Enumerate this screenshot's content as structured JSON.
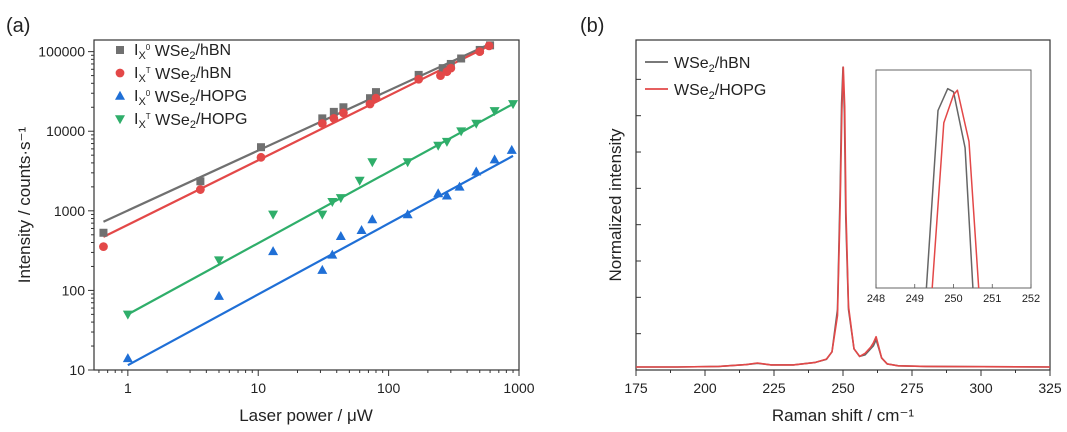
{
  "chart_data": [
    {
      "panel_label": "(a)",
      "type": "scatter",
      "xlabel": "Laser power / μW",
      "ylabel": "Intensity / counts·s⁻¹",
      "xscale": "log",
      "yscale": "log",
      "xlim": [
        0.55,
        1000
      ],
      "ylim": [
        10,
        140000
      ],
      "xticks": [
        1,
        10,
        100,
        1000
      ],
      "xtick_labels": [
        "1",
        "10",
        "100",
        "1000"
      ],
      "yticks": [
        10,
        100,
        1000,
        10000,
        100000
      ],
      "ytick_labels": [
        "10",
        "100",
        "1000",
        "10000",
        "100000"
      ],
      "grid": false,
      "legend_position": "top-left",
      "series": [
        {
          "name": "I X0 WSe2/hBN",
          "name_main": "I",
          "name_sub": "X",
          "name_sup": "0",
          "name_material": "WSe",
          "name_material_sub": "2",
          "name_substrate": "/hBN",
          "marker": "square",
          "color": "#707070",
          "x": [
            0.65,
            3.6,
            10.5,
            31,
            38,
            45,
            72,
            80,
            170,
            260,
            300,
            360,
            500,
            600
          ],
          "y": [
            530,
            2350,
            6300,
            14500,
            17500,
            20000,
            26000,
            31000,
            51000,
            62000,
            70000,
            82000,
            105000,
            120000
          ],
          "fit": {
            "x": [
              0.65,
              600
            ],
            "y": [
              730,
              125000
            ]
          }
        },
        {
          "name": "I XT WSe2/hBN",
          "name_main": "I",
          "name_sub": "X",
          "name_sup": "T",
          "name_material": "WSe",
          "name_material_sub": "2",
          "name_substrate": "/hBN",
          "marker": "circle",
          "color": "#e34848",
          "x": [
            0.65,
            3.6,
            10.5,
            31,
            38,
            45,
            72,
            80,
            170,
            250,
            280,
            300,
            500,
            590
          ],
          "y": [
            355,
            1850,
            4700,
            12500,
            14500,
            17000,
            22000,
            26000,
            45000,
            50000,
            56000,
            62000,
            100000,
            118000
          ],
          "fit": {
            "x": [
              0.65,
              590
            ],
            "y": [
              470,
              118000
            ]
          }
        },
        {
          "name": "I X0 WSe2/HOPG",
          "name_main": "I",
          "name_sub": "X",
          "name_sup": "0",
          "name_material": "WSe",
          "name_material_sub": "2",
          "name_substrate": "/HOPG",
          "marker": "triangle-up",
          "color": "#1f6fd6",
          "x": [
            1,
            5,
            13,
            31,
            37,
            43,
            62,
            75,
            140,
            240,
            280,
            350,
            470,
            650,
            880
          ],
          "y": [
            14,
            85,
            310,
            180,
            280,
            480,
            570,
            780,
            900,
            1650,
            1550,
            2000,
            3100,
            4400,
            5800
          ],
          "fit": {
            "x": [
              1,
              900
            ],
            "y": [
              11.5,
              4900
            ]
          }
        },
        {
          "name": "I XT WSe2/HOPG",
          "name_main": "I",
          "name_sub": "X",
          "name_sup": "T",
          "name_material": "WSe",
          "name_material_sub": "2",
          "name_substrate": "/HOPG",
          "marker": "triangle-down",
          "color": "#2fae6a",
          "x": [
            1,
            5,
            13,
            31,
            37,
            43,
            60,
            75,
            140,
            240,
            280,
            360,
            470,
            650,
            900
          ],
          "y": [
            50,
            240,
            900,
            900,
            1300,
            1450,
            2400,
            4100,
            4100,
            6600,
            7400,
            10000,
            12500,
            18000,
            22000
          ],
          "fit": {
            "x": [
              1,
              900
            ],
            "y": [
              50,
              22000
            ]
          }
        }
      ]
    },
    {
      "panel_label": "(b)",
      "type": "line",
      "xlabel": "Raman shift / cm⁻¹",
      "ylabel": "Normalized intensity",
      "xlim": [
        175,
        325
      ],
      "ylim": [
        0,
        1.09
      ],
      "xticks": [
        175,
        200,
        225,
        250,
        275,
        300,
        325
      ],
      "xtick_labels": [
        "175",
        "200",
        "225",
        "250",
        "275",
        "300",
        "325"
      ],
      "yticks_unlabeled": [
        0.12,
        0.24,
        0.36,
        0.48,
        0.6,
        0.72,
        0.84,
        0.96
      ],
      "grid": false,
      "legend_position": "top-left",
      "series": [
        {
          "name": "WSe2/hBN",
          "name_main": "WSe",
          "name_sub": "2",
          "name_rest": "/hBN",
          "color": "#666666",
          "x": [
            175,
            190,
            205,
            215,
            219,
            224,
            232,
            240,
            244,
            246,
            248,
            249,
            249.5,
            250,
            250.5,
            251,
            252,
            254,
            256,
            258,
            260,
            261,
            262,
            263,
            264,
            266,
            270,
            280,
            300,
            325
          ],
          "y": [
            0.01,
            0.01,
            0.012,
            0.018,
            0.022,
            0.017,
            0.017,
            0.025,
            0.035,
            0.06,
            0.2,
            0.6,
            0.88,
            1.0,
            0.85,
            0.5,
            0.2,
            0.07,
            0.045,
            0.05,
            0.07,
            0.08,
            0.1,
            0.07,
            0.04,
            0.02,
            0.014,
            0.012,
            0.011,
            0.01
          ]
        },
        {
          "name": "WSe2/HOPG",
          "name_main": "WSe",
          "name_sub": "2",
          "name_rest": "/HOPG",
          "color": "#e34848",
          "x": [
            175,
            190,
            205,
            215,
            219,
            224,
            232,
            240,
            244,
            246,
            248,
            249,
            249.6,
            250.1,
            250.6,
            251.1,
            252,
            254,
            256,
            258,
            260,
            261,
            262,
            263,
            264,
            266,
            270,
            280,
            300,
            325
          ],
          "y": [
            0.01,
            0.01,
            0.012,
            0.018,
            0.023,
            0.017,
            0.017,
            0.025,
            0.036,
            0.06,
            0.18,
            0.55,
            0.86,
            1.0,
            0.87,
            0.52,
            0.21,
            0.07,
            0.045,
            0.055,
            0.075,
            0.09,
            0.11,
            0.075,
            0.04,
            0.02,
            0.014,
            0.012,
            0.011,
            0.01
          ]
        }
      ],
      "inset": {
        "xlim": [
          248,
          252
        ],
        "xticks": [
          248,
          249,
          250,
          251,
          252
        ],
        "xtick_labels": [
          "248",
          "249",
          "250",
          "251",
          "252"
        ],
        "ylim": [
          0.35,
          1.05
        ],
        "series": [
          {
            "name": "WSe2/hBN",
            "color": "#666666",
            "x": [
              249.3,
              249.6,
              249.85,
              250.0,
              250.3,
              250.5
            ],
            "y": [
              0.35,
              0.92,
              0.99,
              0.98,
              0.8,
              0.35
            ]
          },
          {
            "name": "WSe2/HOPG",
            "color": "#e34848",
            "x": [
              249.45,
              249.75,
              250.0,
              250.1,
              250.4,
              250.65
            ],
            "y": [
              0.35,
              0.88,
              0.97,
              0.985,
              0.82,
              0.35
            ]
          }
        ]
      }
    }
  ]
}
